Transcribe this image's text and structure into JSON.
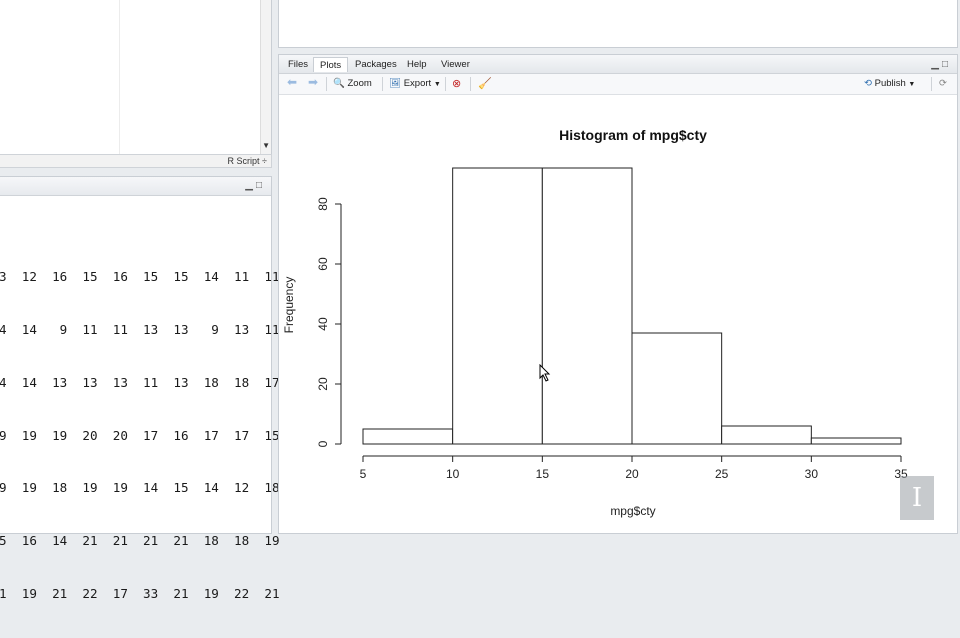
{
  "source_status": {
    "type_label": "R Script ÷"
  },
  "console": {
    "lines": [
      "3  12  16  15  16  15  15  14  11  11",
      "4  14   9  11  11  13  13   9  13  11",
      "4  14  13  13  13  11  13  18  18  17",
      "9  19  19  20  20  17  16  17  17  15",
      "9  19  18  19  19  14  15  14  12  18",
      "5  16  14  21  21  21  21  18  18  19",
      "1  19  21  22  17  33  21  19  22  21"
    ]
  },
  "tabs": [
    "Files",
    "Plots",
    "Packages",
    "Help",
    "Viewer"
  ],
  "active_tab": "Plots",
  "toolbar": {
    "zoom": "Zoom",
    "export": "Export",
    "publish": "Publish"
  },
  "chart_data": {
    "type": "bar",
    "title": "Histogram of mpg$cty",
    "xlabel": "mpg$cty",
    "ylabel": "Frequency",
    "bins": [
      [
        5,
        10
      ],
      [
        10,
        15
      ],
      [
        15,
        20
      ],
      [
        20,
        25
      ],
      [
        25,
        30
      ],
      [
        30,
        35
      ]
    ],
    "values": [
      5,
      92,
      92,
      37,
      6,
      2
    ],
    "x_ticks": [
      5,
      10,
      15,
      20,
      25,
      30,
      35
    ],
    "y_ticks": [
      0,
      20,
      40,
      60,
      80
    ],
    "xlim": [
      5,
      35
    ],
    "ylim": [
      0,
      80
    ]
  },
  "watermark": {
    "glyph": "I"
  }
}
